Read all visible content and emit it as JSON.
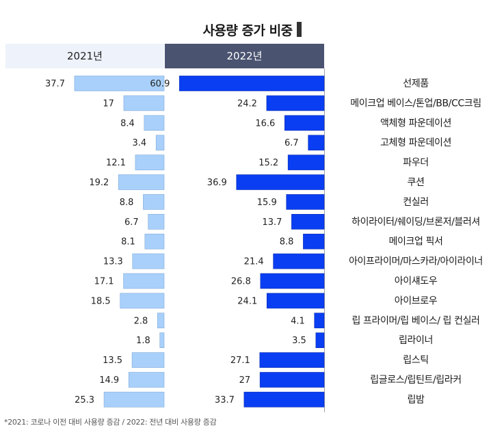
{
  "chart_data": {
    "type": "bar",
    "title": "사용량 증가 비중",
    "footnote": "*2021: 코로나 이전 대비 사용량 증감 / 2022: 전년 대비 사용량 증감",
    "categories": [
      "선제품",
      "메이크업 베이스/톤업/BB/CC크림",
      "액체형 파운데이션",
      "고체형 파운데이션",
      "파우더",
      "쿠션",
      "컨실러",
      "하이라이터/쉐이딩/브론저/블러셔",
      "메이크업 픽서",
      "아이프라이머/마스카라/아이라이너",
      "아이섀도우",
      "아이브로우",
      "립 프라이머/립 베이스/ 립 컨실러",
      "립라이너",
      "립스틱",
      "립글로스/립틴트/립라커",
      "립밤"
    ],
    "series": [
      {
        "name": "2021년",
        "color": "#a9d0fb",
        "values": [
          37.7,
          17,
          8.4,
          3.4,
          12.1,
          19.2,
          8.8,
          6.7,
          8.1,
          13.3,
          17.1,
          18.5,
          2.8,
          1.8,
          13.5,
          14.9,
          25.3
        ],
        "labels": [
          "37.7",
          "17",
          "8.4",
          "3.4",
          "12.1",
          "19.2",
          "8.8",
          "6.7",
          "8.1",
          "13.3",
          "17.1",
          "18.5",
          "2.8",
          "1.8",
          "13.5",
          "14.9",
          "25.3"
        ]
      },
      {
        "name": "2022년",
        "color": "#0a3ef2",
        "values": [
          60.9,
          24.2,
          16.6,
          6.7,
          15.2,
          36.9,
          15.9,
          13.7,
          8.8,
          21.4,
          26.8,
          24.1,
          4.1,
          3.5,
          27.1,
          27,
          33.7
        ],
        "labels": [
          "60.9",
          "24.2",
          "16.6",
          "6.7",
          "15.2",
          "36.9",
          "15.9",
          "13.7",
          "8.8",
          "21.4",
          "26.8",
          "24.1",
          "4.1",
          "3.5",
          "27.1",
          "27",
          "33.7"
        ]
      }
    ],
    "xlim": [
      0,
      61
    ]
  }
}
